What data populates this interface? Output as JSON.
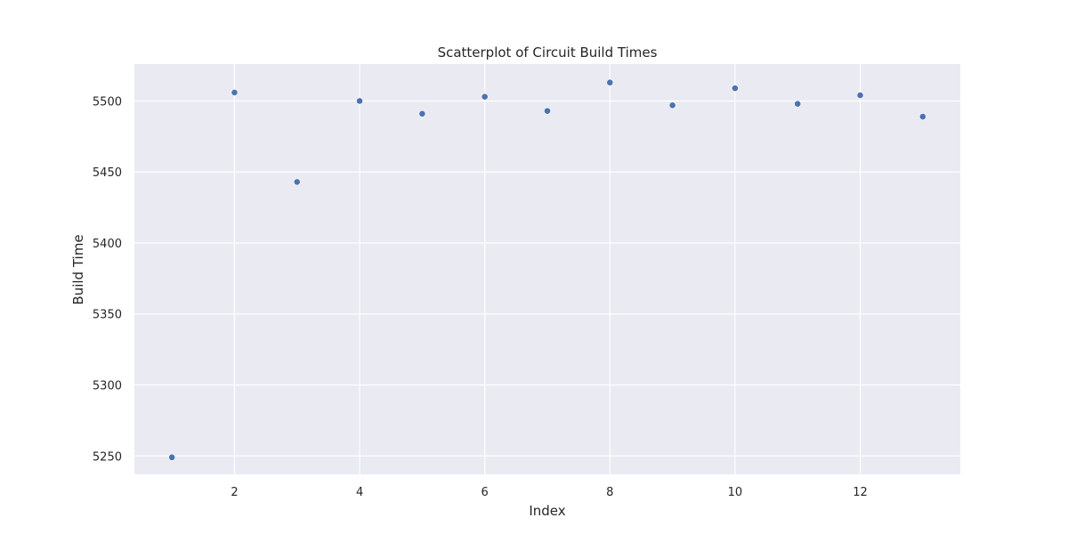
{
  "chart_data": {
    "type": "scatter",
    "title": "Scatterplot of Circuit Build Times",
    "xlabel": "Index",
    "ylabel": "Build Time",
    "x": [
      1,
      2,
      3,
      4,
      5,
      6,
      7,
      8,
      9,
      10,
      11,
      12,
      13
    ],
    "y": [
      5249,
      5506,
      5443,
      5500,
      5491,
      5503,
      5493,
      5513,
      5497,
      5509,
      5498,
      5504,
      5489
    ],
    "xlim": [
      0.4,
      13.6
    ],
    "ylim": [
      5237,
      5526
    ],
    "xticks": [
      2,
      4,
      6,
      8,
      10,
      12
    ],
    "yticks": [
      5250,
      5300,
      5350,
      5400,
      5450,
      5500
    ],
    "grid": true,
    "colors": {
      "background": "#eaeaf2",
      "grid": "#ffffff",
      "point": "#4c72b0"
    }
  }
}
